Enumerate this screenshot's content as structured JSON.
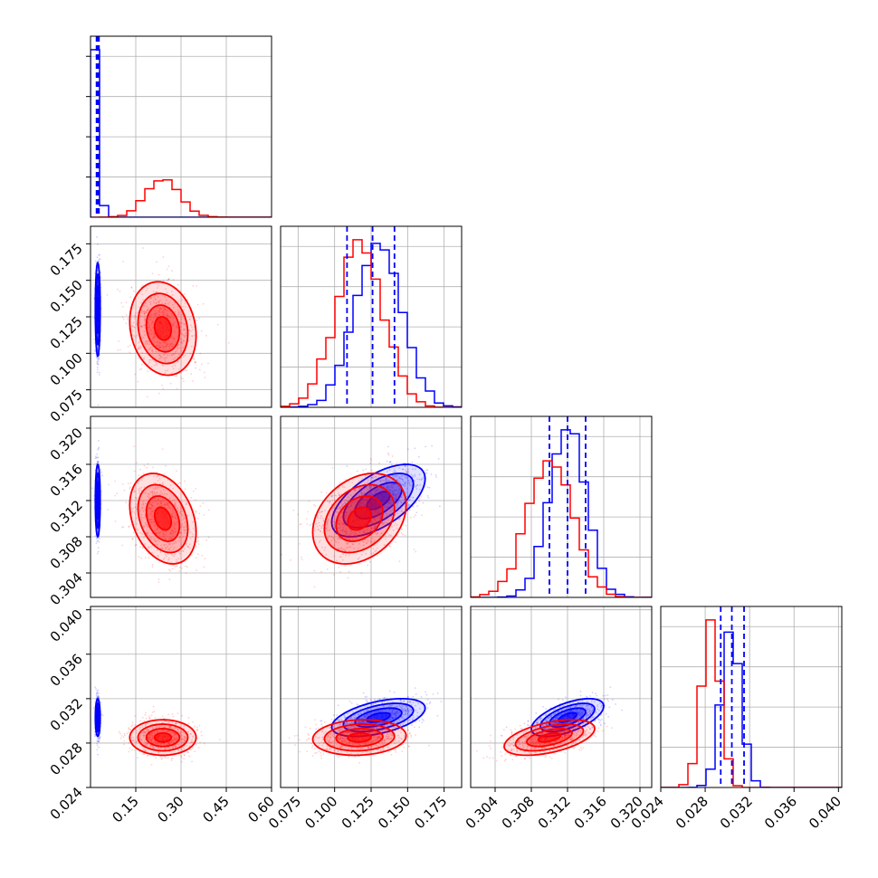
{
  "chart_data": {
    "type": "corner",
    "parameters": [
      {
        "ticks": [
          0.15,
          0.3,
          0.45,
          0.6
        ],
        "tick_labels": [
          "0.15",
          "0.30",
          "0.45",
          "0.60"
        ],
        "range": [
          0.0,
          0.6
        ]
      },
      {
        "ticks": [
          0.075,
          0.1,
          0.125,
          0.15,
          0.175
        ],
        "tick_labels": [
          "0.075",
          "0.100",
          "0.125",
          "0.150",
          "0.175"
        ],
        "range": [
          0.063,
          0.187
        ]
      },
      {
        "ticks": [
          0.304,
          0.308,
          0.312,
          0.316,
          0.32
        ],
        "tick_labels": [
          "0.304",
          "0.308",
          "0.312",
          "0.316",
          "0.320"
        ],
        "range": [
          0.3013,
          0.3213
        ]
      },
      {
        "ticks": [
          0.024,
          0.028,
          0.032,
          0.036,
          0.04
        ],
        "tick_labels": [
          "0.024",
          "0.028",
          "0.032",
          "0.036",
          "0.040"
        ],
        "range": [
          0.024,
          0.0403
        ]
      }
    ],
    "series": [
      {
        "color": "#0000ff",
        "mean": [
          0.024,
          0.13,
          0.312,
          0.0303
        ],
        "sd": [
          0.004,
          0.016,
          0.002,
          0.00085
        ],
        "quantiles": [
          [
            0.02,
            0.024,
            0.028
          ],
          [
            0.1085,
            0.126,
            0.141
          ],
          [
            0.31,
            0.312,
            0.314
          ],
          [
            0.0294,
            0.0304,
            0.0315
          ]
        ]
      },
      {
        "color": "#ff0000",
        "mean": [
          0.24,
          0.117,
          0.31,
          0.0285
        ],
        "sd": [
          0.055,
          0.016,
          0.0025,
          0.0008
        ]
      }
    ],
    "correlations": {
      "blue": [
        [
          1,
          0,
          0,
          0
        ],
        [
          0,
          1,
          0.6,
          0.5
        ],
        [
          0,
          0.6,
          1,
          0.6
        ],
        [
          0,
          0.5,
          0.6,
          1
        ]
      ],
      "red": [
        [
          1,
          -0.15,
          -0.3,
          0
        ],
        [
          -0.15,
          1,
          0.3,
          0.1
        ],
        [
          -0.3,
          0.3,
          1,
          0.5
        ],
        [
          0,
          0.1,
          0.5,
          1
        ]
      ]
    },
    "grid": true
  }
}
